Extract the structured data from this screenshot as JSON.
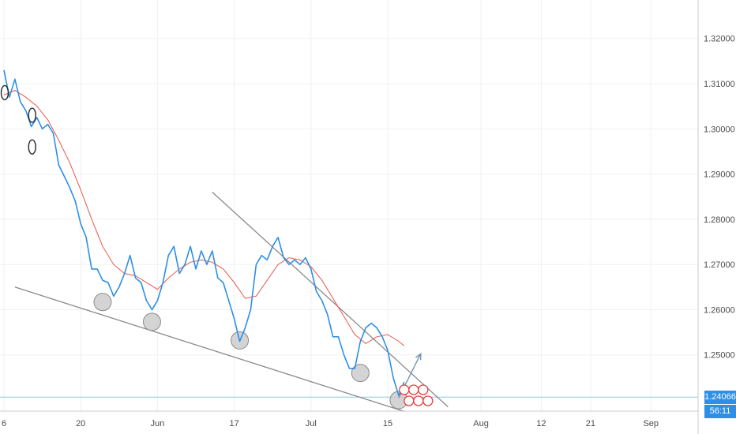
{
  "colors": {
    "price": "#2d8fe6",
    "ma": "#e8574a",
    "trendline": "#8a8a8a",
    "marker_fill": "#c9c9c9",
    "marker_stroke": "#8a8a8a",
    "grid": "#eef0f3",
    "axis": "#c9cdd2",
    "last_price_line": "#8ec6ee",
    "price_tag_bg": "#2d8fe6",
    "ring": "#2b2b2b",
    "badge": "#e3403a"
  },
  "price_tag": {
    "value": "1.24066",
    "countdown": "56:11"
  },
  "chart_data": {
    "type": "line",
    "y_ticks": [
      "1.32000",
      "1.31000",
      "1.30000",
      "1.29000",
      "1.28000",
      "1.27000",
      "1.26000",
      "1.25000"
    ],
    "y_tick_values": [
      1.32,
      1.31,
      1.3,
      1.29,
      1.28,
      1.27,
      1.26,
      1.25
    ],
    "ylim": [
      1.2325,
      1.3285
    ],
    "x_ticks": [
      "6",
      "20",
      "Jun",
      "17",
      "Jul",
      "15",
      "Aug",
      "12",
      "21",
      "Sep"
    ],
    "x_tick_dates": [
      "2019-05-06",
      "2019-05-20",
      "2019-06-03",
      "2019-06-17",
      "2019-07-01",
      "2019-07-15",
      "2019-08-01",
      "2019-08-12",
      "2019-08-21",
      "2019-09-01"
    ],
    "series": [
      {
        "kind": "price",
        "points": [
          [
            "2019-05-06",
            1.313
          ],
          [
            "2019-05-07",
            1.307
          ],
          [
            "2019-05-08",
            1.311
          ],
          [
            "2019-05-09",
            1.306
          ],
          [
            "2019-05-10",
            1.304
          ],
          [
            "2019-05-11",
            1.3005
          ],
          [
            "2019-05-12",
            1.3025
          ],
          [
            "2019-05-13",
            1.3
          ],
          [
            "2019-05-14",
            1.301
          ],
          [
            "2019-05-15",
            1.299
          ],
          [
            "2019-05-16",
            1.292
          ],
          [
            "2019-05-17",
            1.2895
          ],
          [
            "2019-05-18",
            1.287
          ],
          [
            "2019-05-19",
            1.284
          ],
          [
            "2019-05-20",
            1.279
          ],
          [
            "2019-05-21",
            1.276
          ],
          [
            "2019-05-22",
            1.269
          ],
          [
            "2019-05-23",
            1.269
          ],
          [
            "2019-05-24",
            1.2665
          ],
          [
            "2019-05-25",
            1.266
          ],
          [
            "2019-05-26",
            1.263
          ],
          [
            "2019-05-27",
            1.265
          ],
          [
            "2019-05-28",
            1.268
          ],
          [
            "2019-05-29",
            1.272
          ],
          [
            "2019-05-30",
            1.267
          ],
          [
            "2019-05-31",
            1.266
          ],
          [
            "2019-06-01",
            1.262
          ],
          [
            "2019-06-02",
            1.26
          ],
          [
            "2019-06-03",
            1.262
          ],
          [
            "2019-06-04",
            1.266
          ],
          [
            "2019-06-05",
            1.272
          ],
          [
            "2019-06-06",
            1.274
          ],
          [
            "2019-06-07",
            1.268
          ],
          [
            "2019-06-08",
            1.27
          ],
          [
            "2019-06-09",
            1.274
          ],
          [
            "2019-06-10",
            1.269
          ],
          [
            "2019-06-11",
            1.273
          ],
          [
            "2019-06-12",
            1.27
          ],
          [
            "2019-06-13",
            1.273
          ],
          [
            "2019-06-14",
            1.267
          ],
          [
            "2019-06-15",
            1.266
          ],
          [
            "2019-06-16",
            1.262
          ],
          [
            "2019-06-17",
            1.258
          ],
          [
            "2019-06-18",
            1.253
          ],
          [
            "2019-06-19",
            1.256
          ],
          [
            "2019-06-20",
            1.26
          ],
          [
            "2019-06-21",
            1.27
          ],
          [
            "2019-06-22",
            1.272
          ],
          [
            "2019-06-23",
            1.271
          ],
          [
            "2019-06-24",
            1.274
          ],
          [
            "2019-06-25",
            1.276
          ],
          [
            "2019-06-26",
            1.2715
          ],
          [
            "2019-06-27",
            1.27
          ],
          [
            "2019-06-28",
            1.271
          ],
          [
            "2019-06-29",
            1.27
          ],
          [
            "2019-06-30",
            1.2715
          ],
          [
            "2019-07-01",
            1.269
          ],
          [
            "2019-07-02",
            1.264
          ],
          [
            "2019-07-03",
            1.262
          ],
          [
            "2019-07-04",
            1.259
          ],
          [
            "2019-07-05",
            1.254
          ],
          [
            "2019-07-06",
            1.254
          ],
          [
            "2019-07-07",
            1.25
          ],
          [
            "2019-07-08",
            1.247
          ],
          [
            "2019-07-09",
            1.247
          ],
          [
            "2019-07-10",
            1.253
          ],
          [
            "2019-07-11",
            1.256
          ],
          [
            "2019-07-12",
            1.257
          ],
          [
            "2019-07-13",
            1.256
          ],
          [
            "2019-07-14",
            1.254
          ],
          [
            "2019-07-15",
            1.251
          ],
          [
            "2019-07-16",
            1.245
          ],
          [
            "2019-07-17",
            1.241
          ],
          [
            "2019-07-18",
            1.244
          ]
        ]
      },
      {
        "kind": "moving_average",
        "points": [
          [
            "2019-05-06",
            1.3075
          ],
          [
            "2019-05-08",
            1.3085
          ],
          [
            "2019-05-10",
            1.307
          ],
          [
            "2019-05-12",
            1.305
          ],
          [
            "2019-05-14",
            1.302
          ],
          [
            "2019-05-16",
            1.2975
          ],
          [
            "2019-05-18",
            1.2925
          ],
          [
            "2019-05-20",
            1.2865
          ],
          [
            "2019-05-22",
            1.28
          ],
          [
            "2019-05-24",
            1.274
          ],
          [
            "2019-05-26",
            1.27
          ],
          [
            "2019-05-28",
            1.268
          ],
          [
            "2019-05-30",
            1.2675
          ],
          [
            "2019-06-01",
            1.266
          ],
          [
            "2019-06-03",
            1.2645
          ],
          [
            "2019-06-05",
            1.267
          ],
          [
            "2019-06-07",
            1.269
          ],
          [
            "2019-06-09",
            1.2705
          ],
          [
            "2019-06-11",
            1.271
          ],
          [
            "2019-06-13",
            1.2705
          ],
          [
            "2019-06-15",
            1.269
          ],
          [
            "2019-06-17",
            1.266
          ],
          [
            "2019-06-19",
            1.2625
          ],
          [
            "2019-06-21",
            1.263
          ],
          [
            "2019-06-23",
            1.2665
          ],
          [
            "2019-06-25",
            1.27
          ],
          [
            "2019-06-27",
            1.2715
          ],
          [
            "2019-06-29",
            1.271
          ],
          [
            "2019-07-01",
            1.2695
          ],
          [
            "2019-07-03",
            1.2665
          ],
          [
            "2019-07-05",
            1.2625
          ],
          [
            "2019-07-07",
            1.2585
          ],
          [
            "2019-07-09",
            1.2545
          ],
          [
            "2019-07-11",
            1.2525
          ],
          [
            "2019-07-13",
            1.254
          ],
          [
            "2019-07-15",
            1.2545
          ],
          [
            "2019-07-17",
            1.253
          ],
          [
            "2019-07-18",
            1.252
          ]
        ]
      }
    ],
    "annotations": {
      "trendlines": [
        [
          [
            "2019-05-08",
            1.265
          ],
          [
            "2019-07-18",
            1.2375
          ]
        ],
        [
          [
            "2019-06-13",
            1.286
          ],
          [
            "2019-07-26",
            1.2385
          ]
        ]
      ],
      "arrow": [
        [
          "2019-07-17",
          1.2405
        ],
        [
          "2019-07-19",
          1.252
        ]
      ],
      "marker_points": [
        [
          "2019-05-24",
          1.2617
        ],
        [
          "2019-06-02",
          1.2573
        ],
        [
          "2019-06-18",
          1.2532
        ],
        [
          "2019-07-10",
          1.246
        ],
        [
          "2019-07-17",
          1.24
        ]
      ],
      "ring_points": [
        [
          "2019-05-06",
          1.308
        ],
        [
          "2019-05-11",
          1.303
        ],
        [
          "2019-05-11",
          1.296
        ]
      ]
    },
    "last_price": 1.24066,
    "grid": true
  }
}
